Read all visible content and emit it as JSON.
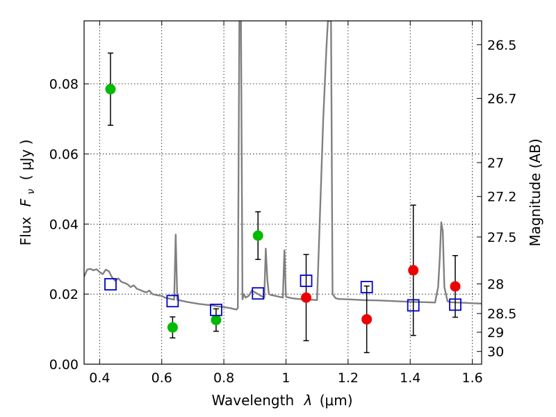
{
  "chart_data": {
    "type": "scatter",
    "xlabel": "Wavelength",
    "xlabel_symbol": "λ",
    "xlabel_unit": "(μm)",
    "ylabel": "Flux",
    "ylabel_symbol": "F",
    "ylabel_subscript": "ν",
    "ylabel_unit": "( μJy )",
    "y2label": "Magnitude (AB)",
    "xlim": [
      0.35,
      1.63
    ],
    "ylim": [
      0.0,
      0.098
    ],
    "grid": true,
    "x_ticks": [
      0.4,
      0.6,
      0.8,
      1.0,
      1.2,
      1.4,
      1.6
    ],
    "x_tick_labels": [
      "0.4",
      "0.6",
      "0.8",
      "1",
      "1.2",
      "1.4",
      "1.6"
    ],
    "y_ticks": [
      0.0,
      0.02,
      0.04,
      0.06,
      0.08
    ],
    "y_tick_labels": [
      "0.00",
      "0.02",
      "0.04",
      "0.06",
      "0.08"
    ],
    "y2_ticks": [
      {
        "label": "26.5",
        "mag": 26.5
      },
      {
        "label": "26.7",
        "mag": 26.7
      },
      {
        "label": "27",
        "mag": 27.0
      },
      {
        "label": "27.2",
        "mag": 27.2
      },
      {
        "label": "27.5",
        "mag": 27.5
      },
      {
        "label": "28",
        "mag": 28.0
      },
      {
        "label": "28.5",
        "mag": 28.5
      },
      {
        "label": "29",
        "mag": 29.0
      },
      {
        "label": "30",
        "mag": 30.0
      }
    ],
    "colors": {
      "model": "#808080",
      "green": "#00bb00",
      "red": "#ee0000",
      "model_phot": "#0000cc",
      "errorbar": "#000000"
    },
    "series": [
      {
        "marker": "line",
        "color_key": "model",
        "x": [
          0.35,
          0.36,
          0.37,
          0.38,
          0.39,
          0.4,
          0.41,
          0.42,
          0.43,
          0.44,
          0.45,
          0.46,
          0.47,
          0.48,
          0.49,
          0.5,
          0.51,
          0.52,
          0.53,
          0.54,
          0.55,
          0.56,
          0.57,
          0.58,
          0.59,
          0.6,
          0.61,
          0.62,
          0.63,
          0.64,
          0.645,
          0.65,
          0.66,
          0.68,
          0.7,
          0.72,
          0.74,
          0.76,
          0.78,
          0.8,
          0.82,
          0.84,
          0.845,
          0.85,
          0.852,
          0.855,
          0.86,
          0.865,
          0.87,
          0.88,
          0.89,
          0.9,
          0.91,
          0.92,
          0.93,
          0.935,
          0.94,
          0.945,
          0.95,
          0.96,
          0.97,
          0.98,
          0.99,
          0.995,
          1.0,
          1.01,
          1.02,
          1.04,
          1.06,
          1.08,
          1.1,
          1.12,
          1.13,
          1.135,
          1.14,
          1.145,
          1.15,
          1.16,
          1.17,
          1.2,
          1.25,
          1.3,
          1.35,
          1.4,
          1.45,
          1.48,
          1.49,
          1.495,
          1.5,
          1.505,
          1.51,
          1.52,
          1.53,
          1.55,
          1.58,
          1.6,
          1.63
        ],
        "y": [
          0.025,
          0.027,
          0.0272,
          0.0268,
          0.0271,
          0.0263,
          0.0257,
          0.027,
          0.0265,
          0.0248,
          0.0238,
          0.0245,
          0.0235,
          0.0232,
          0.0228,
          0.022,
          0.0225,
          0.0215,
          0.0212,
          0.0208,
          0.0205,
          0.021,
          0.02,
          0.0198,
          0.0196,
          0.0195,
          0.019,
          0.0188,
          0.0186,
          0.0184,
          0.037,
          0.0184,
          0.0182,
          0.0178,
          0.0175,
          0.0172,
          0.017,
          0.0168,
          0.0165,
          0.0163,
          0.016,
          0.0156,
          0.016,
          0.098,
          0.098,
          0.098,
          0.0185,
          0.02,
          0.019,
          0.0195,
          0.021,
          0.0205,
          0.02,
          0.0195,
          0.019,
          0.033,
          0.024,
          0.02,
          0.0198,
          0.0196,
          0.0194,
          0.0192,
          0.019,
          0.0325,
          0.0192,
          0.019,
          0.0188,
          0.0186,
          0.0185,
          0.0184,
          0.0183,
          0.07,
          0.09,
          0.098,
          0.098,
          0.098,
          0.02,
          0.0188,
          0.0186,
          0.0185,
          0.0183,
          0.0182,
          0.018,
          0.0178,
          0.0177,
          0.0176,
          0.022,
          0.03,
          0.0405,
          0.038,
          0.022,
          0.018,
          0.0177,
          0.0176,
          0.0175,
          0.0174,
          0.0173
        ]
      },
      {
        "marker": "circle",
        "color_key": "green",
        "x": [
          0.435,
          0.635,
          0.775,
          0.91
        ],
        "y": [
          0.0785,
          0.0105,
          0.0126,
          0.0367
        ],
        "yerr": [
          0.0103,
          0.003,
          0.0032,
          0.0068
        ]
      },
      {
        "marker": "circle",
        "color_key": "red",
        "x": [
          1.065,
          1.26,
          1.41,
          1.545
        ],
        "y": [
          0.019,
          0.0128,
          0.0268,
          0.0222
        ],
        "yerr": [
          0.0123,
          0.0095,
          0.0186,
          0.0088
        ]
      },
      {
        "marker": "open-square",
        "color_key": "model_phot",
        "x": [
          0.435,
          0.635,
          0.775,
          0.91,
          1.065,
          1.26,
          1.41,
          1.545
        ],
        "y": [
          0.0228,
          0.018,
          0.0155,
          0.0202,
          0.0238,
          0.022,
          0.0168,
          0.017
        ]
      }
    ]
  }
}
